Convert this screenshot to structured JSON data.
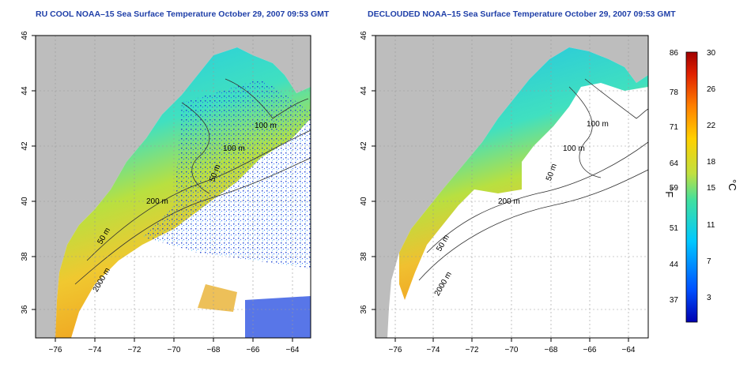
{
  "maps": [
    {
      "title": "RU COOL NOAA–15 Sea Surface Temperature October 29, 2007 09:53 GMT",
      "contour_labels": [
        "100 m",
        "100 m",
        "50 m",
        "200 m",
        "50 m",
        "2000 m"
      ]
    },
    {
      "title": "DECLOUDED NOAA–15 Sea Surface Temperature October 29, 2007 09:53 GMT",
      "contour_labels": [
        "100 m",
        "100 m",
        "50 m",
        "200 m",
        "50 m",
        "2000 m"
      ]
    }
  ],
  "lon_ticks": [
    "−76",
    "−74",
    "−72",
    "−70",
    "−68",
    "−66",
    "−64"
  ],
  "lat_ticks": [
    "46",
    "44",
    "42",
    "40",
    "38",
    "36"
  ],
  "colorbar": {
    "f_label": "°F",
    "c_label": "°C",
    "f_ticks": [
      "86",
      "78",
      "71",
      "64",
      "59",
      "51",
      "44",
      "37"
    ],
    "c_ticks": [
      "30",
      "26",
      "22",
      "18",
      "15",
      "11",
      "7",
      "3"
    ],
    "colors": [
      "#0000b0",
      "#0050ff",
      "#00c8ff",
      "#40e0a0",
      "#c0e040",
      "#ffd000",
      "#ff8000",
      "#e02000",
      "#a00000"
    ]
  },
  "colors": {
    "land": "#bdbdbd",
    "title": "#1f3fa8"
  }
}
